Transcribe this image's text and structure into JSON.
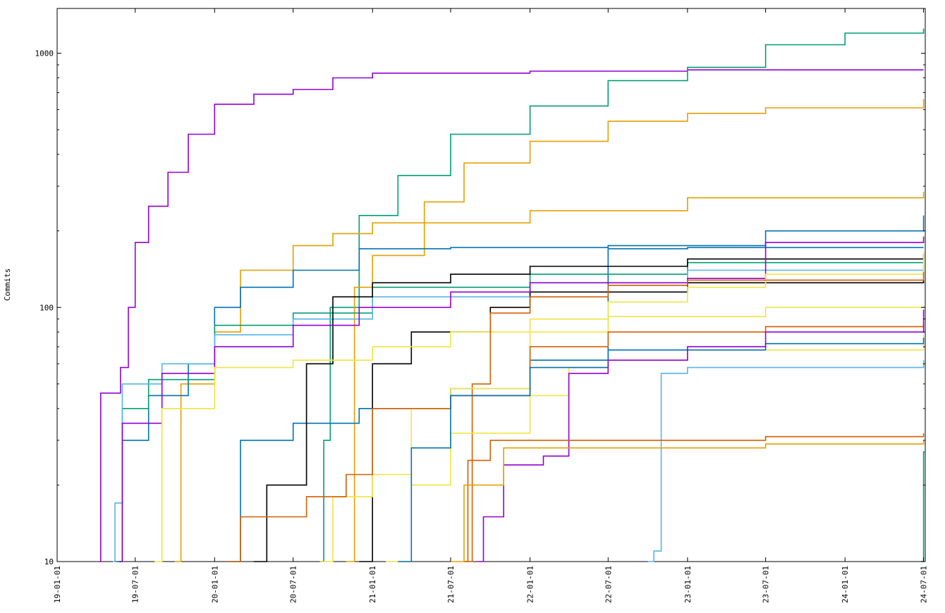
{
  "chart_data": {
    "type": "line",
    "title": "",
    "xlabel": "",
    "ylabel": "Commits",
    "y_scale": "log",
    "ylim": [
      10,
      1500
    ],
    "xlim": [
      "2019-01-01",
      "2024-07-05"
    ],
    "grid": false,
    "legend": "none",
    "x_tick_labels": [
      "19-01-01",
      "19-07-01",
      "20-01-01",
      "20-07-01",
      "21-01-01",
      "21-07-01",
      "22-01-01",
      "22-07-01",
      "23-01-01",
      "23-07-01",
      "24-01-01",
      "24-07-01"
    ],
    "x_ticks": [
      "2019-01-01",
      "2019-07-01",
      "2020-01-01",
      "2020-07-01",
      "2021-01-01",
      "2021-07-01",
      "2022-01-01",
      "2022-07-01",
      "2023-01-01",
      "2023-07-01",
      "2024-01-01",
      "2024-07-01"
    ],
    "y_tick_labels": [
      "10",
      "100",
      "1000"
    ],
    "y_ticks": [
      10,
      100,
      1000
    ],
    "series": [
      {
        "color": "#9400d3",
        "points": [
          [
            "2019-04-08",
            10
          ],
          [
            "2019-04-12",
            46
          ],
          [
            "2019-05-15",
            46
          ],
          [
            "2019-05-28",
            58
          ],
          [
            "2019-06-15",
            100
          ],
          [
            "2019-07-01",
            180
          ],
          [
            "2019-08-01",
            250
          ],
          [
            "2019-09-15",
            340
          ],
          [
            "2019-11-01",
            480
          ],
          [
            "2020-01-01",
            630
          ],
          [
            "2020-04-01",
            690
          ],
          [
            "2020-07-01",
            720
          ],
          [
            "2020-10-01",
            800
          ],
          [
            "2021-01-01",
            835
          ],
          [
            "2022-01-01",
            850
          ],
          [
            "2023-01-01",
            860
          ],
          [
            "2024-07-01",
            860
          ]
        ]
      },
      {
        "color": "#009e73",
        "points": [
          [
            "2020-09-01",
            10
          ],
          [
            "2020-09-10",
            30
          ],
          [
            "2020-09-25",
            100
          ],
          [
            "2020-12-01",
            230
          ],
          [
            "2021-03-01",
            330
          ],
          [
            "2021-07-01",
            480
          ],
          [
            "2022-01-01",
            620
          ],
          [
            "2022-07-01",
            780
          ],
          [
            "2023-01-01",
            880
          ],
          [
            "2023-07-01",
            1080
          ],
          [
            "2024-01-01",
            1200
          ],
          [
            "2024-07-01",
            1250
          ]
        ]
      },
      {
        "color": "#e69f00",
        "points": [
          [
            "2020-11-01",
            10
          ],
          [
            "2020-11-20",
            120
          ],
          [
            "2021-01-01",
            160
          ],
          [
            "2021-05-01",
            260
          ],
          [
            "2021-08-01",
            370
          ],
          [
            "2022-01-01",
            450
          ],
          [
            "2022-07-01",
            540
          ],
          [
            "2023-01-01",
            580
          ],
          [
            "2023-07-01",
            610
          ],
          [
            "2024-07-01",
            660
          ]
        ]
      },
      {
        "color": "#e69f00",
        "points": [
          [
            "2019-10-01",
            10
          ],
          [
            "2019-10-15",
            50
          ],
          [
            "2020-01-01",
            80
          ],
          [
            "2020-03-01",
            140
          ],
          [
            "2020-07-01",
            175
          ],
          [
            "2020-10-01",
            195
          ],
          [
            "2021-01-01",
            215
          ],
          [
            "2022-01-01",
            240
          ],
          [
            "2023-01-01",
            270
          ],
          [
            "2024-07-01",
            285
          ]
        ]
      },
      {
        "color": "#0072b2",
        "points": [
          [
            "2019-05-20",
            10
          ],
          [
            "2019-06-01",
            30
          ],
          [
            "2019-08-01",
            45
          ],
          [
            "2019-11-01",
            60
          ],
          [
            "2020-01-01",
            100
          ],
          [
            "2020-03-01",
            120
          ],
          [
            "2020-07-01",
            140
          ],
          [
            "2020-12-01",
            170
          ],
          [
            "2021-07-01",
            172
          ],
          [
            "2022-07-01",
            175
          ],
          [
            "2023-07-01",
            200
          ],
          [
            "2024-07-01",
            230
          ]
        ]
      },
      {
        "color": "#0072b2",
        "points": [
          [
            "2020-02-01",
            10
          ],
          [
            "2020-03-01",
            30
          ],
          [
            "2020-07-01",
            35
          ],
          [
            "2020-12-01",
            40
          ],
          [
            "2021-07-01",
            48
          ],
          [
            "2022-01-01",
            62
          ],
          [
            "2022-07-01",
            170
          ],
          [
            "2023-01-01",
            172
          ],
          [
            "2024-07-01",
            172
          ]
        ]
      },
      {
        "color": "#009e73",
        "points": [
          [
            "2019-05-20",
            10
          ],
          [
            "2019-06-01",
            40
          ],
          [
            "2019-08-01",
            52
          ],
          [
            "2020-01-01",
            85
          ],
          [
            "2020-07-01",
            95
          ],
          [
            "2021-01-01",
            120
          ],
          [
            "2022-01-01",
            135
          ],
          [
            "2023-01-01",
            150
          ],
          [
            "2024-07-01",
            150
          ]
        ]
      },
      {
        "color": "#56b4e9",
        "points": [
          [
            "2019-05-10",
            10
          ],
          [
            "2019-05-15",
            17
          ],
          [
            "2019-06-01",
            50
          ],
          [
            "2019-09-01",
            60
          ],
          [
            "2020-01-01",
            78
          ],
          [
            "2020-07-01",
            90
          ],
          [
            "2021-01-01",
            110
          ],
          [
            "2022-01-01",
            125
          ],
          [
            "2023-01-01",
            140
          ],
          [
            "2024-07-01",
            145
          ]
        ]
      },
      {
        "color": "#000000",
        "points": [
          [
            "2020-04-01",
            10
          ],
          [
            "2020-05-01",
            20
          ],
          [
            "2020-08-01",
            60
          ],
          [
            "2020-10-01",
            110
          ],
          [
            "2021-01-01",
            125
          ],
          [
            "2021-07-01",
            135
          ],
          [
            "2022-01-01",
            145
          ],
          [
            "2023-01-01",
            155
          ],
          [
            "2024-07-01",
            162
          ]
        ]
      },
      {
        "color": "#000000",
        "points": [
          [
            "2020-12-01",
            10
          ],
          [
            "2021-01-01",
            60
          ],
          [
            "2021-04-01",
            80
          ],
          [
            "2021-10-01",
            100
          ],
          [
            "2022-01-01",
            115
          ],
          [
            "2023-01-01",
            125
          ],
          [
            "2024-07-01",
            128
          ]
        ]
      },
      {
        "color": "#9400d3",
        "points": [
          [
            "2019-05-25",
            10
          ],
          [
            "2019-06-01",
            35
          ],
          [
            "2019-09-01",
            55
          ],
          [
            "2020-01-01",
            70
          ],
          [
            "2020-07-01",
            85
          ],
          [
            "2020-12-01",
            100
          ],
          [
            "2021-07-01",
            115
          ],
          [
            "2022-01-01",
            125
          ],
          [
            "2023-01-01",
            130
          ],
          [
            "2023-07-01",
            180
          ],
          [
            "2024-07-01",
            190
          ]
        ]
      },
      {
        "color": "#f0e442",
        "points": [
          [
            "2019-08-15",
            10
          ],
          [
            "2019-09-01",
            40
          ],
          [
            "2020-01-01",
            58
          ],
          [
            "2020-07-01",
            62
          ],
          [
            "2021-01-01",
            70
          ],
          [
            "2021-07-01",
            80
          ],
          [
            "2022-01-01",
            90
          ],
          [
            "2022-07-01",
            105
          ],
          [
            "2023-01-01",
            120
          ],
          [
            "2023-07-01",
            135
          ],
          [
            "2024-07-01",
            165
          ]
        ]
      },
      {
        "color": "#d55e00",
        "points": [
          [
            "2021-08-01",
            10
          ],
          [
            "2021-08-20",
            50
          ],
          [
            "2021-10-01",
            95
          ],
          [
            "2022-01-01",
            110
          ],
          [
            "2022-07-01",
            122
          ],
          [
            "2023-01-01",
            128
          ],
          [
            "2024-07-01",
            138
          ]
        ]
      },
      {
        "color": "#f0e442",
        "points": [
          [
            "2020-09-01",
            10
          ],
          [
            "2020-10-01",
            18
          ],
          [
            "2021-01-01",
            22
          ],
          [
            "2021-04-01",
            40
          ],
          [
            "2021-07-01",
            48
          ],
          [
            "2022-01-01",
            80
          ],
          [
            "2022-07-01",
            92
          ],
          [
            "2023-07-01",
            100
          ],
          [
            "2024-07-01",
            102
          ]
        ]
      },
      {
        "color": "#d55e00",
        "points": [
          [
            "2020-02-01",
            10
          ],
          [
            "2020-03-01",
            15
          ],
          [
            "2020-08-01",
            18
          ],
          [
            "2020-11-01",
            22
          ],
          [
            "2021-01-01",
            40
          ],
          [
            "2021-07-01",
            45
          ],
          [
            "2022-01-01",
            70
          ],
          [
            "2022-07-01",
            80
          ],
          [
            "2023-07-01",
            84
          ],
          [
            "2024-07-01",
            86
          ]
        ]
      },
      {
        "color": "#f0e442",
        "points": [
          [
            "2021-02-01",
            10
          ],
          [
            "2021-04-01",
            20
          ],
          [
            "2021-07-01",
            32
          ],
          [
            "2022-01-01",
            45
          ],
          [
            "2022-04-01",
            58
          ],
          [
            "2022-07-01",
            62
          ],
          [
            "2023-01-01",
            68
          ],
          [
            "2024-07-01",
            78
          ]
        ]
      },
      {
        "color": "#0072b2",
        "points": [
          [
            "2021-03-01",
            10
          ],
          [
            "2021-04-01",
            28
          ],
          [
            "2021-07-01",
            45
          ],
          [
            "2022-01-01",
            58
          ],
          [
            "2022-07-01",
            68
          ],
          [
            "2023-07-01",
            72
          ],
          [
            "2024-07-01",
            76
          ]
        ]
      },
      {
        "color": "#56b4e9",
        "points": [
          [
            "2022-10-01",
            10
          ],
          [
            "2022-10-15",
            11
          ],
          [
            "2022-11-01",
            55
          ],
          [
            "2023-01-01",
            58
          ],
          [
            "2024-07-01",
            62
          ]
        ]
      },
      {
        "color": "#9400d3",
        "points": [
          [
            "2021-09-01",
            10
          ],
          [
            "2021-09-15",
            15
          ],
          [
            "2021-11-01",
            24
          ],
          [
            "2022-02-01",
            26
          ],
          [
            "2022-04-01",
            55
          ],
          [
            "2022-07-01",
            62
          ],
          [
            "2023-01-01",
            70
          ],
          [
            "2023-07-01",
            80
          ],
          [
            "2024-07-01",
            98
          ]
        ]
      },
      {
        "color": "#d55e00",
        "points": [
          [
            "2021-08-01",
            10
          ],
          [
            "2021-08-10",
            25
          ],
          [
            "2021-10-01",
            30
          ],
          [
            "2023-07-01",
            31
          ],
          [
            "2024-07-01",
            32
          ]
        ]
      },
      {
        "color": "#e69f00",
        "points": [
          [
            "2021-07-01",
            10
          ],
          [
            "2021-08-01",
            20
          ],
          [
            "2021-11-01",
            28
          ],
          [
            "2023-07-01",
            29
          ],
          [
            "2024-07-01",
            30
          ]
        ]
      },
      {
        "color": "#009e73",
        "points": [
          [
            "2024-06-25",
            10
          ],
          [
            "2024-07-01",
            27
          ],
          [
            "2024-07-05",
            27
          ]
        ]
      }
    ]
  }
}
